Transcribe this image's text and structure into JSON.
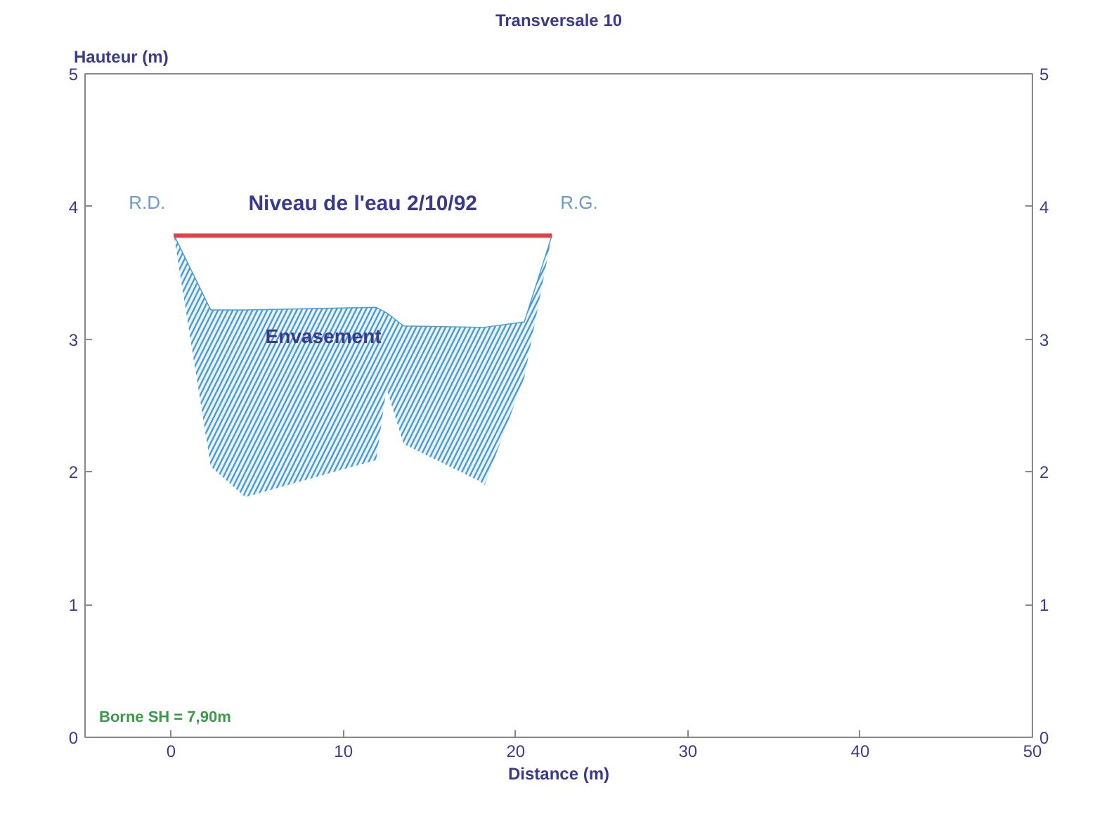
{
  "chart_data": {
    "type": "line",
    "title": "Transversale 10",
    "xlabel": "Distance (m)",
    "ylabel": "Hauteur (m)",
    "x": [
      0.15,
      2.3,
      4.3,
      11.9,
      12.5,
      13.5,
      17.9,
      18.2,
      20.5,
      22.1
    ],
    "series": [
      {
        "name": "Envasement",
        "color": "#4a9ad4",
        "values": [
          3.79,
          3.22,
          3.22,
          3.24,
          3.2,
          3.1,
          3.09,
          3.09,
          3.13,
          3.78
        ],
        "upper": [
          3.79,
          3.22,
          3.22,
          3.24,
          3.2,
          3.1,
          3.09,
          3.09,
          3.13,
          3.78
        ],
        "lower": [
          3.79,
          2.04,
          1.81,
          2.09,
          2.63,
          2.21,
          1.93,
          1.9,
          2.71,
          3.78
        ]
      },
      {
        "name": "Niveau de l'eau 2/10/92",
        "color": "#e0404a",
        "x": [
          0.15,
          22.1
        ],
        "values": [
          3.78,
          3.78
        ]
      }
    ],
    "xlim": [
      -5,
      50
    ],
    "xticks": [
      0,
      10,
      20,
      30,
      40,
      50
    ],
    "ylim": [
      0,
      5
    ],
    "yticks": [
      0,
      1,
      2,
      3,
      4,
      5
    ],
    "y2lim": [
      0,
      5
    ],
    "y2ticks": [
      0,
      1,
      2,
      3,
      4,
      5
    ],
    "annotations": [
      "R.D.",
      "R.G.",
      "Borne SH = 7,90m"
    ],
    "grid": false,
    "legend": false
  }
}
